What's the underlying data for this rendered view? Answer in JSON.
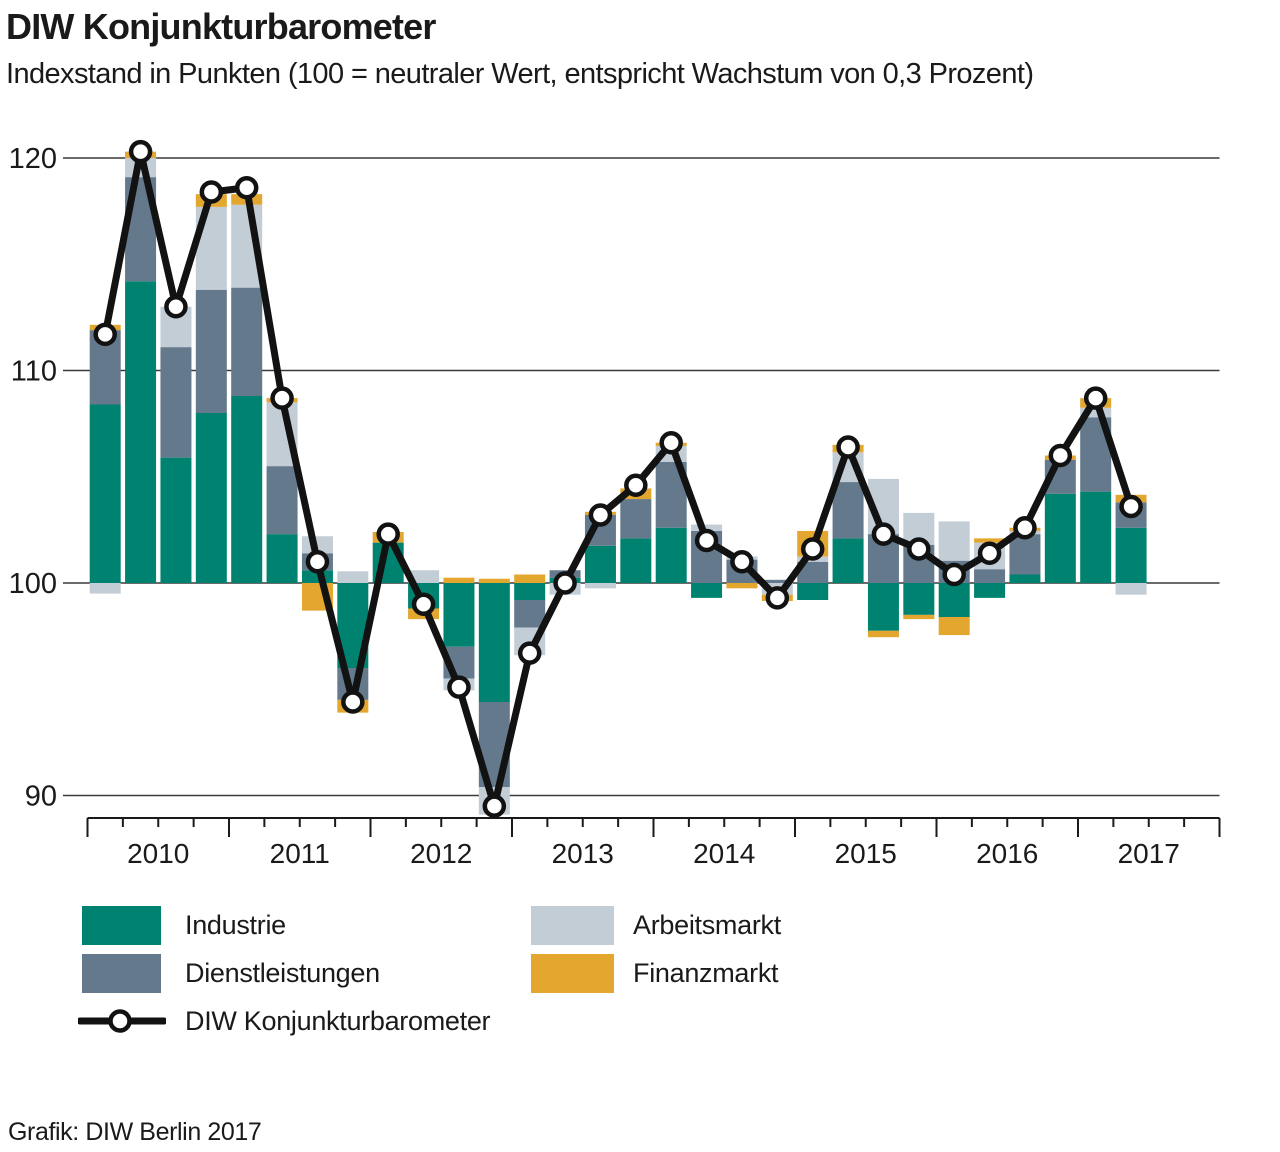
{
  "title": "DIW Konjunkturbarometer",
  "subtitle": "Indexstand in Punkten (100 = neutraler Wert, entspricht Wachstum von 0,3 Prozent)",
  "footer": "Grafik: DIW Berlin 2017",
  "colors": {
    "industrie": "#008270",
    "dienstleistungen": "#64798C",
    "arbeitsmarkt": "#C3CDD6",
    "finanzmarkt": "#E3A62F",
    "line": "#121212",
    "axis": "#1a1a1a",
    "grid": "#3a3a3a",
    "marker_fill": "#ffffff"
  },
  "legend": {
    "industrie": "Industrie",
    "dienstleistungen": "Dienstleistungen",
    "arbeitsmarkt": "Arbeitsmarkt",
    "finanzmarkt": "Finanzmarkt",
    "barometer": "DIW Konjunkturbarometer"
  },
  "chart_data": {
    "type": "bar",
    "subtype": "stacked contribution bars around baseline with overlaid line",
    "baseline": 100,
    "ylim": [
      88,
      122
    ],
    "yticks": [
      120,
      110,
      100,
      90
    ],
    "grid": true,
    "x_year_labels": [
      "2010",
      "2011",
      "2012",
      "2013",
      "2014",
      "2015",
      "2016",
      "2017"
    ],
    "categories": [
      "2010Q1",
      "2010Q2",
      "2010Q3",
      "2010Q4",
      "2011Q1",
      "2011Q2",
      "2011Q3",
      "2011Q4",
      "2012Q1",
      "2012Q2",
      "2012Q3",
      "2012Q4",
      "2013Q1",
      "2013Q2",
      "2013Q3",
      "2013Q4",
      "2014Q1",
      "2014Q2",
      "2014Q3",
      "2014Q4",
      "2015Q1",
      "2015Q2",
      "2015Q3",
      "2015Q4",
      "2016Q1",
      "2016Q2",
      "2016Q3",
      "2016Q4",
      "2017Q1",
      "2017Q2"
    ],
    "series": [
      {
        "name": "Industrie",
        "values": [
          8.4,
          14.2,
          5.9,
          8.0,
          8.8,
          2.3,
          0.6,
          -4.0,
          1.9,
          -1.2,
          -3.0,
          -5.6,
          -0.8,
          0.25,
          1.75,
          2.1,
          2.6,
          -0.7,
          0.0,
          0.0,
          -0.8,
          2.1,
          -2.25,
          -1.5,
          -1.6,
          -0.7,
          0.4,
          4.2,
          4.3,
          2.6
        ]
      },
      {
        "name": "Dienstleistungen",
        "values": [
          3.5,
          4.9,
          5.2,
          5.8,
          5.1,
          3.2,
          0.8,
          -1.5,
          0.0,
          0.0,
          -1.5,
          -4.0,
          -1.3,
          0.35,
          1.45,
          1.85,
          3.1,
          2.45,
          1.1,
          0.15,
          1.0,
          2.65,
          2.3,
          1.8,
          1.05,
          0.65,
          1.9,
          1.6,
          3.5,
          1.2
        ]
      },
      {
        "name": "Arbeitsmarkt",
        "values": [
          -0.5,
          0.9,
          1.9,
          3.9,
          3.9,
          3.0,
          0.8,
          0.55,
          0.0,
          0.6,
          -0.55,
          -1.3,
          -1.3,
          -0.55,
          -0.25,
          0.0,
          0.75,
          0.3,
          0.15,
          -0.55,
          0.25,
          1.4,
          2.6,
          1.5,
          1.85,
          1.25,
          0.15,
          0.0,
          0.45,
          -0.55
        ]
      },
      {
        "name": "Finanzmarkt",
        "values": [
          0.25,
          0.3,
          0.0,
          0.6,
          0.5,
          0.2,
          -1.3,
          -0.6,
          0.5,
          -0.5,
          0.25,
          0.2,
          0.4,
          0.0,
          0.15,
          0.5,
          0.15,
          0.0,
          -0.25,
          -0.3,
          1.2,
          0.35,
          -0.3,
          -0.2,
          -0.85,
          0.2,
          0.15,
          0.2,
          0.45,
          0.35
        ]
      }
    ],
    "line": {
      "name": "DIW Konjunkturbarometer",
      "values": [
        111.7,
        120.3,
        113.0,
        118.4,
        118.6,
        108.7,
        101.0,
        94.4,
        102.3,
        99.0,
        95.1,
        89.5,
        96.7,
        100.0,
        103.2,
        104.6,
        106.6,
        102.0,
        101.0,
        99.3,
        101.6,
        106.4,
        102.3,
        101.6,
        100.4,
        101.4,
        102.6,
        106.0,
        108.7,
        103.6
      ]
    }
  }
}
